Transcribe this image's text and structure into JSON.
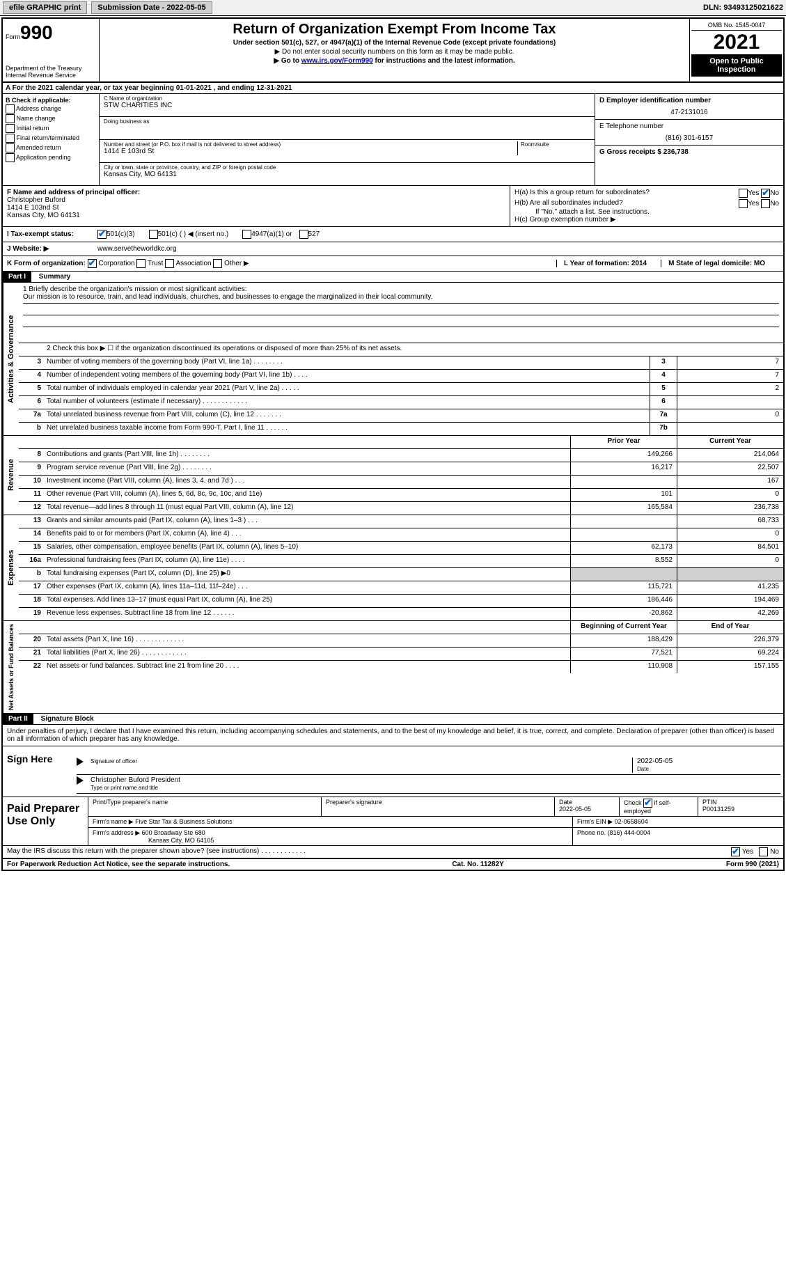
{
  "topbar": {
    "efile": "efile GRAPHIC print",
    "submission_label": "Submission Date - 2022-05-05",
    "dln": "DLN: 93493125021622"
  },
  "header": {
    "form_prefix": "Form",
    "form_number": "990",
    "dept": "Department of the Treasury",
    "irs": "Internal Revenue Service",
    "title": "Return of Organization Exempt From Income Tax",
    "sub1": "Under section 501(c), 527, or 4947(a)(1) of the Internal Revenue Code (except private foundations)",
    "sub2": "▶ Do not enter social security numbers on this form as it may be made public.",
    "sub3_pre": "▶ Go to ",
    "sub3_link": "www.irs.gov/Form990",
    "sub3_post": " for instructions and the latest information.",
    "omb": "OMB No. 1545-0047",
    "year": "2021",
    "open": "Open to Public Inspection"
  },
  "row_a": "A For the 2021 calendar year, or tax year beginning 01-01-2021    , and ending 12-31-2021",
  "col_b": {
    "label": "B Check if applicable:",
    "items": [
      "Address change",
      "Name change",
      "Initial return",
      "Final return/terminated",
      "Amended return",
      "Application pending"
    ]
  },
  "col_c": {
    "name_label": "C Name of organization",
    "name": "STW CHARITIES INC",
    "dba_label": "Doing business as",
    "dba": "",
    "addr_label": "Number and street (or P.O. box if mail is not delivered to street address)",
    "room_label": "Room/suite",
    "addr": "1414 E 103rd St",
    "city_label": "City or town, state or province, country, and ZIP or foreign postal code",
    "city": "Kansas City, MO  64131"
  },
  "col_d": {
    "ein_label": "D Employer identification number",
    "ein": "47-2131016",
    "phone_label": "E Telephone number",
    "phone": "(816) 301-6157",
    "gross_label": "G Gross receipts $ 236,738"
  },
  "row_f": {
    "label": "F Name and address of principal officer:",
    "name": "Christopher Buford",
    "addr1": "1414 E 103nd St",
    "addr2": "Kansas City, MO  64131"
  },
  "row_h": {
    "ha": "H(a)  Is this a group return for subordinates?",
    "hb": "H(b)  Are all subordinates included?",
    "hb_note": "If \"No,\" attach a list. See instructions.",
    "hc": "H(c)  Group exemption number ▶"
  },
  "row_i": {
    "label": "I    Tax-exempt status:",
    "opt1": "501(c)(3)",
    "opt2": "501(c) (  ) ◀ (insert no.)",
    "opt3": "4947(a)(1) or",
    "opt4": "527"
  },
  "row_j": {
    "label": "J    Website: ▶",
    "value": "www.servetheworldkc.org"
  },
  "row_k": {
    "label": "K Form of organization:",
    "opts": [
      "Corporation",
      "Trust",
      "Association",
      "Other ▶"
    ]
  },
  "row_l": {
    "label": "L Year of formation: 2014"
  },
  "row_m": {
    "label": "M State of legal domicile: MO"
  },
  "part1": {
    "header": "Part I",
    "title": "Summary",
    "line1_label": "1   Briefly describe the organization's mission or most significant activities:",
    "mission": "Our mission is to resource, train, and lead individuals, churches, and businesses to engage the marginalized in their local community.",
    "line2": "2   Check this box ▶ ☐  if the organization discontinued its operations or disposed of more than 25% of its net assets.",
    "gov_label": "Activities & Governance",
    "rev_label": "Revenue",
    "exp_label": "Expenses",
    "net_label": "Net Assets or Fund Balances",
    "lines_gov": [
      {
        "n": "3",
        "d": "Number of voting members of the governing body (Part VI, line 1a)   .    .    .    .    .    .    .    .",
        "bn": "3",
        "v": "7"
      },
      {
        "n": "4",
        "d": "Number of independent voting members of the governing body (Part VI, line 1b)   .    .    .    .",
        "bn": "4",
        "v": "7"
      },
      {
        "n": "5",
        "d": "Total number of individuals employed in calendar year 2021 (Part V, line 2a)   .    .    .    .    .",
        "bn": "5",
        "v": "2"
      },
      {
        "n": "6",
        "d": "Total number of volunteers (estimate if necessary)   .    .    .    .    .    .    .    .    .    .    .    .",
        "bn": "6",
        "v": ""
      },
      {
        "n": "7a",
        "d": "Total unrelated business revenue from Part VIII, column (C), line 12   .    .    .    .    .    .    .",
        "bn": "7a",
        "v": "0"
      },
      {
        "n": "b",
        "d": "Net unrelated business taxable income from Form 990-T, Part I, line 11   .    .    .    .    .    .",
        "bn": "7b",
        "v": ""
      }
    ],
    "col_prior": "Prior Year",
    "col_current": "Current Year",
    "lines_rev": [
      {
        "n": "8",
        "d": "Contributions and grants (Part VIII, line 1h)   .    .    .    .    .    .    .    .",
        "p": "149,266",
        "c": "214,064"
      },
      {
        "n": "9",
        "d": "Program service revenue (Part VIII, line 2g)   .    .    .    .    .    .    .    .",
        "p": "16,217",
        "c": "22,507"
      },
      {
        "n": "10",
        "d": "Investment income (Part VIII, column (A), lines 3, 4, and 7d )   .    .    .",
        "p": "",
        "c": "167"
      },
      {
        "n": "11",
        "d": "Other revenue (Part VIII, column (A), lines 5, 6d, 8c, 9c, 10c, and 11e)",
        "p": "101",
        "c": "0"
      },
      {
        "n": "12",
        "d": "Total revenue—add lines 8 through 11 (must equal Part VIII, column (A), line 12)",
        "p": "165,584",
        "c": "236,738"
      }
    ],
    "lines_exp": [
      {
        "n": "13",
        "d": "Grants and similar amounts paid (Part IX, column (A), lines 1–3 )   .    .    .",
        "p": "",
        "c": "68,733"
      },
      {
        "n": "14",
        "d": "Benefits paid to or for members (Part IX, column (A), line 4)   .    .    .",
        "p": "",
        "c": "0"
      },
      {
        "n": "15",
        "d": "Salaries, other compensation, employee benefits (Part IX, column (A), lines 5–10)",
        "p": "62,173",
        "c": "84,501"
      },
      {
        "n": "16a",
        "d": "Professional fundraising fees (Part IX, column (A), line 11e)   .    .    .    .",
        "p": "8,552",
        "c": "0"
      },
      {
        "n": "b",
        "d": "Total fundraising expenses (Part IX, column (D), line 25) ▶0",
        "p": "grey",
        "c": "grey"
      },
      {
        "n": "17",
        "d": "Other expenses (Part IX, column (A), lines 11a–11d, 11f–24e)   .    .    .",
        "p": "115,721",
        "c": "41,235"
      },
      {
        "n": "18",
        "d": "Total expenses. Add lines 13–17 (must equal Part IX, column (A), line 25)",
        "p": "186,446",
        "c": "194,469"
      },
      {
        "n": "19",
        "d": "Revenue less expenses. Subtract line 18 from line 12   .    .    .    .    .    .",
        "p": "-20,862",
        "c": "42,269"
      }
    ],
    "col_begin": "Beginning of Current Year",
    "col_end": "End of Year",
    "lines_net": [
      {
        "n": "20",
        "d": "Total assets (Part X, line 16)   .    .    .    .    .    .    .    .    .    .    .    .    .",
        "p": "188,429",
        "c": "226,379"
      },
      {
        "n": "21",
        "d": "Total liabilities (Part X, line 26)   .    .    .    .    .    .    .    .    .    .    .    .",
        "p": "77,521",
        "c": "69,224"
      },
      {
        "n": "22",
        "d": "Net assets or fund balances. Subtract line 21 from line 20   .    .    .    .",
        "p": "110,908",
        "c": "157,155"
      }
    ]
  },
  "part2": {
    "header": "Part II",
    "title": "Signature Block",
    "decl": "Under penalties of perjury, I declare that I have examined this return, including accompanying schedules and statements, and to the best of my knowledge and belief, it is true, correct, and complete. Declaration of preparer (other than officer) is based on all information of which preparer has any knowledge.",
    "sign_here": "Sign Here",
    "sig_officer": "Signature of officer",
    "sig_date": "2022-05-05",
    "date_label": "Date",
    "officer_name": "Christopher Buford  President",
    "name_title_label": "Type or print name and title",
    "paid": "Paid Preparer Use Only",
    "prep_name_label": "Print/Type preparer's name",
    "prep_sig_label": "Preparer's signature",
    "prep_date_label": "Date",
    "prep_date": "2022-05-05",
    "prep_check_label": "Check ☑ if self-employed",
    "ptin_label": "PTIN",
    "ptin": "P00131259",
    "firm_name_label": "Firm's name    ▶",
    "firm_name": "Five Star Tax & Business Solutions",
    "firm_ein_label": "Firm's EIN ▶",
    "firm_ein": "02-0658604",
    "firm_addr_label": "Firm's address ▶",
    "firm_addr1": "600 Broadway Ste 680",
    "firm_addr2": "Kansas City, MO  64105",
    "firm_phone_label": "Phone no.",
    "firm_phone": "(816) 444-0004",
    "may_irs": "May the IRS discuss this return with the preparer shown above? (see instructions)   .    .    .    .    .    .    .    .    .    .    .    ."
  },
  "footer": {
    "paperwork": "For Paperwork Reduction Act Notice, see the separate instructions.",
    "cat": "Cat. No. 11282Y",
    "form": "Form 990 (2021)"
  },
  "yes": "Yes",
  "no": "No"
}
